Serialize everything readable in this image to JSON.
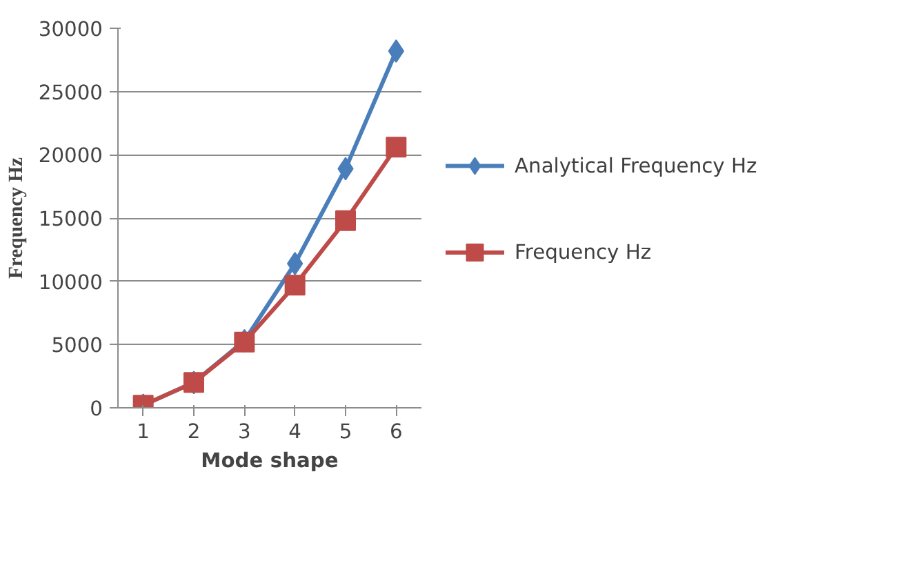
{
  "chart_data": {
    "type": "line",
    "xlabel": "Mode shape",
    "ylabel": "Frequency Hz",
    "categories": [
      "1",
      "2",
      "3",
      "4",
      "5",
      "6"
    ],
    "series": [
      {
        "name": "Analytical Frequency Hz",
        "color": "#4a7ebb",
        "marker": "diamond",
        "values": [
          200,
          2000,
          5300,
          11400,
          18900,
          28200
        ]
      },
      {
        "name": "Frequency Hz",
        "color": "#be4b48",
        "marker": "square",
        "values": [
          200,
          2000,
          5200,
          9700,
          14800,
          20600
        ]
      }
    ],
    "ylim": [
      0,
      30000
    ],
    "yticks": [
      0,
      5000,
      10000,
      15000,
      20000,
      25000,
      30000
    ],
    "grid": "y",
    "legend": "right",
    "line_style": "solid"
  }
}
